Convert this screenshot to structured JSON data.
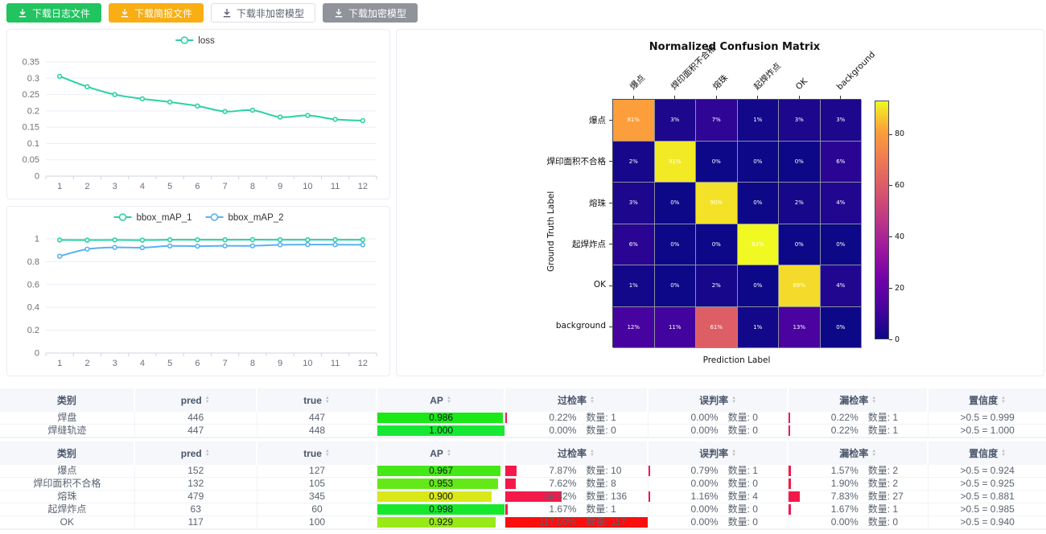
{
  "toolbar": {
    "buttons": [
      {
        "label": "下载日志文件",
        "bg": "#21c45f",
        "color": "#ffffff",
        "border": "#21c45f"
      },
      {
        "label": "下载简报文件",
        "bg": "#f9ae13",
        "color": "#ffffff",
        "border": "#f9ae13"
      },
      {
        "label": "下载非加密模型",
        "bg": "#ffffff",
        "color": "#5a6270",
        "border": "#dcdfe6"
      },
      {
        "label": "下载加密模型",
        "bg": "#909399",
        "color": "#ffffff",
        "border": "#909399"
      }
    ]
  },
  "colors": {
    "teal": "#2ad1a3",
    "blue": "#5ab1ef",
    "rate_bar": "#f5194b",
    "rate_bar_full": "#fb0e0e",
    "grid_line": "#e9eef6",
    "axis_line": "#ccd4de",
    "axis_text": "#6e7079",
    "legend_text": "#333333"
  },
  "chart_data": [
    {
      "type": "line",
      "legend": [
        "loss"
      ],
      "x": [
        1,
        2,
        3,
        4,
        5,
        6,
        7,
        8,
        9,
        10,
        11,
        12
      ],
      "series": [
        {
          "name": "loss",
          "color": "#2ad1a3",
          "values": [
            0.306,
            0.274,
            0.25,
            0.237,
            0.227,
            0.215,
            0.198,
            0.202,
            0.181,
            0.186,
            0.174,
            0.17
          ]
        }
      ],
      "ylim": [
        0,
        0.35
      ],
      "yticks": [
        0,
        0.05,
        0.1,
        0.15,
        0.2,
        0.25,
        0.3,
        0.35
      ],
      "grid": true,
      "legend_position": "top-center"
    },
    {
      "type": "line",
      "legend": [
        "bbox_mAP_1",
        "bbox_mAP_2"
      ],
      "x": [
        1,
        2,
        3,
        4,
        5,
        6,
        7,
        8,
        9,
        10,
        11,
        12
      ],
      "series": [
        {
          "name": "bbox_mAP_1",
          "color": "#2ad1a3",
          "values": [
            0.99,
            0.989,
            0.99,
            0.989,
            0.992,
            0.992,
            0.992,
            0.993,
            0.992,
            0.992,
            0.992,
            0.992
          ]
        },
        {
          "name": "bbox_mAP_2",
          "color": "#5ab1ef",
          "values": [
            0.848,
            0.91,
            0.925,
            0.923,
            0.938,
            0.936,
            0.939,
            0.939,
            0.948,
            0.95,
            0.949,
            0.948
          ]
        }
      ],
      "ylim": [
        0,
        1
      ],
      "yticks": [
        0,
        0.2,
        0.4,
        0.6,
        0.8,
        1
      ],
      "grid": true,
      "legend_position": "top-center"
    },
    {
      "type": "heatmap",
      "title": "Normalized Confusion Matrix",
      "xlabel": "Prediction Label",
      "ylabel": "Ground Truth Label",
      "labels": [
        "爆点",
        "焊印面积不合格",
        "熔珠",
        "起焊炸点",
        "OK",
        "background"
      ],
      "matrix": [
        [
          81,
          3,
          7,
          1,
          3,
          3
        ],
        [
          2,
          91,
          0,
          0,
          0,
          6
        ],
        [
          3,
          0,
          90,
          0,
          2,
          4
        ],
        [
          6,
          0,
          0,
          93,
          0,
          0
        ],
        [
          1,
          0,
          2,
          0,
          89,
          4
        ],
        [
          12,
          11,
          61,
          1,
          13,
          0
        ]
      ],
      "unit": "%",
      "vmin": 0,
      "vmax": 93,
      "colormap": "plasma",
      "colorbar_ticks": [
        0,
        20,
        40,
        60,
        80
      ]
    }
  ],
  "columns": [
    {
      "key": "category",
      "label": "类别",
      "type": "text",
      "width": 12.9,
      "sortable": false
    },
    {
      "key": "pred",
      "label": "pred",
      "type": "text",
      "width": 11.7,
      "sortable": true
    },
    {
      "key": "true",
      "label": "true",
      "type": "text",
      "width": 11.5,
      "sortable": true
    },
    {
      "key": "ap",
      "label": "AP",
      "type": "ap",
      "width": 12.2,
      "sortable": true
    },
    {
      "key": "over",
      "label": "过检率",
      "type": "rate",
      "width": 13.7,
      "sortable": true
    },
    {
      "key": "mis",
      "label": "误判率",
      "type": "rate",
      "width": 13.4,
      "sortable": true
    },
    {
      "key": "miss",
      "label": "漏检率",
      "type": "rate",
      "width": 13.4,
      "sortable": true
    },
    {
      "key": "conf",
      "label": "置信度",
      "type": "text",
      "width": 11.2,
      "sortable": true
    }
  ],
  "tables": [
    {
      "rows": [
        {
          "category": "焊盘",
          "pred": "446",
          "true": "447",
          "ap": {
            "value": 0.986,
            "label": "0.986"
          },
          "over": {
            "pct": "0.22%",
            "count": "数量: 1",
            "value": 0.22
          },
          "mis": {
            "pct": "0.00%",
            "count": "数量: 0",
            "value": 0
          },
          "miss": {
            "pct": "0.22%",
            "count": "数量: 1",
            "value": 0.22
          },
          "conf": ">0.5 = 0.999"
        },
        {
          "category": "焊缝轨迹",
          "pred": "447",
          "true": "448",
          "ap": {
            "value": 1.0,
            "label": "1.000"
          },
          "over": {
            "pct": "0.00%",
            "count": "数量: 0",
            "value": 0
          },
          "mis": {
            "pct": "0.00%",
            "count": "数量: 0",
            "value": 0
          },
          "miss": {
            "pct": "0.22%",
            "count": "数量: 1",
            "value": 0.22
          },
          "conf": ">0.5 = 1.000"
        }
      ]
    },
    {
      "rows": [
        {
          "category": "爆点",
          "pred": "152",
          "true": "127",
          "ap": {
            "value": 0.967,
            "label": "0.967"
          },
          "over": {
            "pct": "7.87%",
            "count": "数量: 10",
            "value": 7.87
          },
          "mis": {
            "pct": "0.79%",
            "count": "数量: 1",
            "value": 0.79
          },
          "miss": {
            "pct": "1.57%",
            "count": "数量: 2",
            "value": 1.57
          },
          "conf": ">0.5 = 0.924"
        },
        {
          "category": "焊印面积不合格",
          "pred": "132",
          "true": "105",
          "ap": {
            "value": 0.953,
            "label": "0.953"
          },
          "over": {
            "pct": "7.62%",
            "count": "数量: 8",
            "value": 7.62
          },
          "mis": {
            "pct": "0.00%",
            "count": "数量: 0",
            "value": 0
          },
          "miss": {
            "pct": "1.90%",
            "count": "数量: 2",
            "value": 1.9
          },
          "conf": ">0.5 = 0.925"
        },
        {
          "category": "熔珠",
          "pred": "479",
          "true": "345",
          "ap": {
            "value": 0.9,
            "label": "0.900"
          },
          "over": {
            "pct": "39.42%",
            "count": "数量: 136",
            "value": 39.42
          },
          "mis": {
            "pct": "1.16%",
            "count": "数量: 4",
            "value": 1.16
          },
          "miss": {
            "pct": "7.83%",
            "count": "数量: 27",
            "value": 7.83
          },
          "conf": ">0.5 = 0.881"
        },
        {
          "category": "起焊炸点",
          "pred": "63",
          "true": "60",
          "ap": {
            "value": 0.998,
            "label": "0.998"
          },
          "over": {
            "pct": "1.67%",
            "count": "数量: 1",
            "value": 1.67
          },
          "mis": {
            "pct": "0.00%",
            "count": "数量: 0",
            "value": 0
          },
          "miss": {
            "pct": "1.67%",
            "count": "数量: 1",
            "value": 1.67
          },
          "conf": ">0.5 = 0.985"
        },
        {
          "category": "OK",
          "pred": "117",
          "true": "100",
          "ap": {
            "value": 0.929,
            "label": "0.929"
          },
          "over": {
            "pct": "117.00%",
            "count": "数量: 117",
            "value": 117
          },
          "mis": {
            "pct": "0.00%",
            "count": "数量: 0",
            "value": 0
          },
          "miss": {
            "pct": "0.00%",
            "count": "数量: 0",
            "value": 0
          },
          "conf": ">0.5 = 0.940"
        }
      ]
    }
  ]
}
